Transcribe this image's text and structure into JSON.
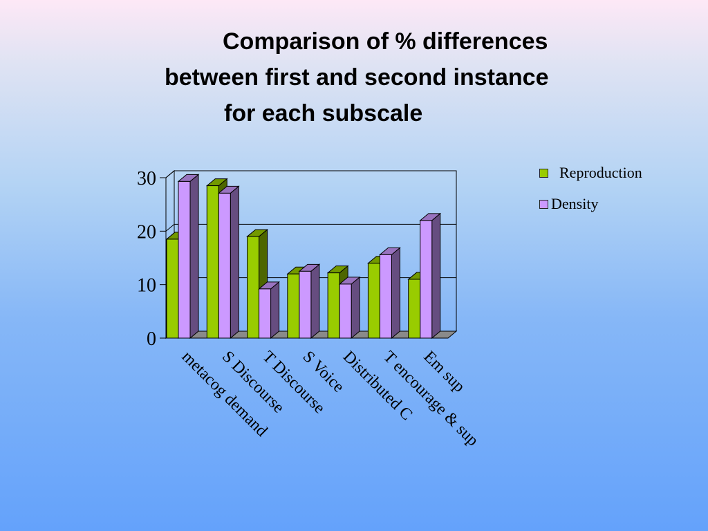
{
  "slide": {
    "title_lines": [
      "Comparison of % differences",
      "between first and second instance",
      "for each subscale"
    ]
  },
  "chart_data": {
    "type": "bar",
    "title": "",
    "xlabel": "",
    "ylabel": "",
    "categories": [
      "metacog demand",
      "S Discourse",
      "T Discourse",
      "S Voice",
      "Distributed C",
      "T encourage & sup",
      "Em sup"
    ],
    "series": [
      {
        "name": "Reproduction",
        "color": "#99cc00",
        "values": [
          18.5,
          28.5,
          19,
          12,
          12.2,
          14,
          11
        ]
      },
      {
        "name": "Density",
        "color": "#cc99ff",
        "values": [
          29.3,
          27.1,
          9.2,
          12.5,
          10.1,
          15.6,
          22
        ]
      }
    ],
    "y_ticks": [
      "0",
      "10",
      "20",
      "30"
    ],
    "ylim": [
      0,
      30
    ],
    "grid": true,
    "legend": "right",
    "style": "3d-column"
  }
}
